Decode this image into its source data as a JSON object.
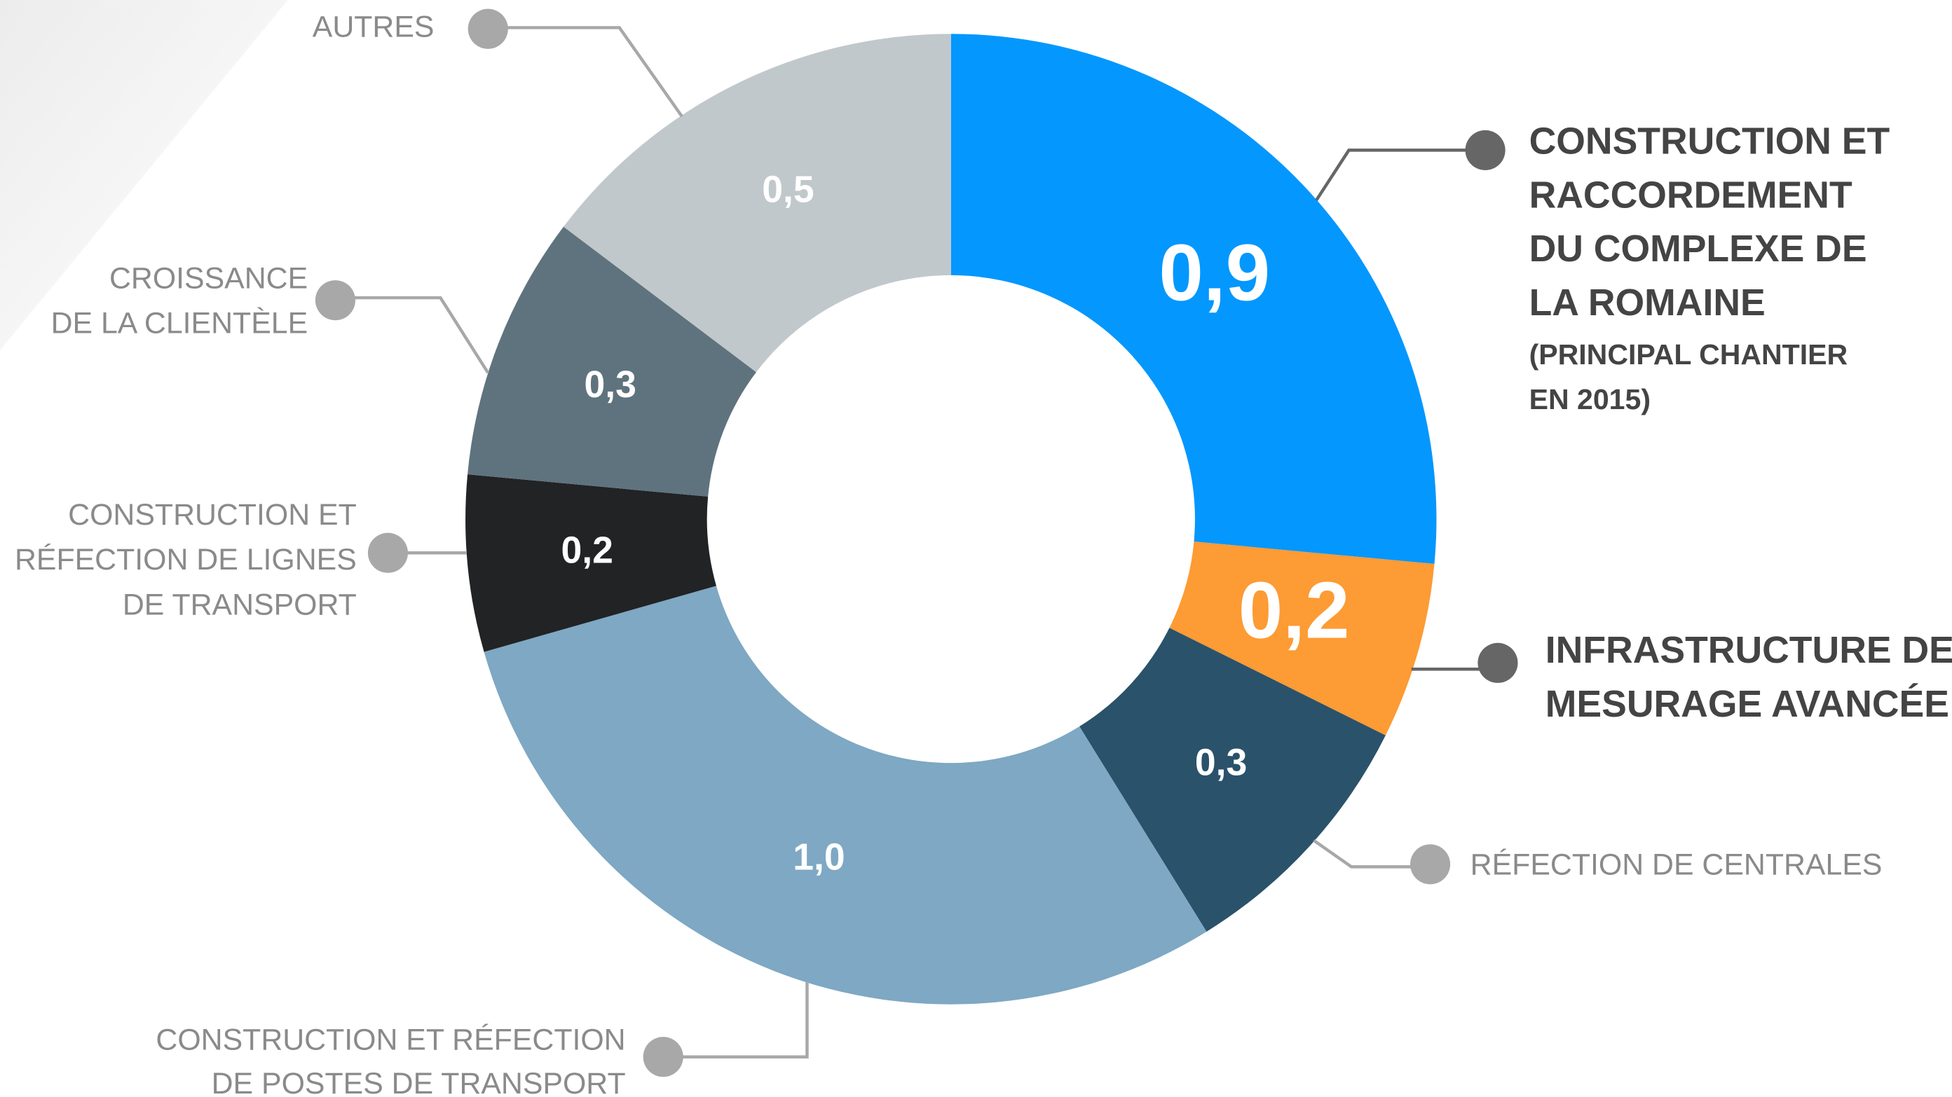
{
  "chart_data": {
    "type": "donut",
    "categories": [
      [
        "CONSTRUCTION ET",
        "RACCORDEMENT",
        "DU COMPLEXE DE",
        "LA ROMAINE"
      ],
      [
        "INFRASTRUCTURE DE",
        "MESURAGE AVANCÉE"
      ],
      [
        "RÉFECTION DE CENTRALES"
      ],
      [
        "CONSTRUCTION  ET RÉFECTION",
        "DE POSTES DE TRANSPORT"
      ],
      [
        "CONSTRUCTION ET",
        "RÉFECTION DE LIGNES",
        "DE TRANSPORT"
      ],
      [
        "CROISSANCE",
        "DE LA CLIENTÈLE"
      ],
      [
        "AUTRES"
      ]
    ],
    "annotation": [
      "(PRINCIPAL CHANTIER",
      "EN 2015)"
    ],
    "values": [
      0.9,
      0.2,
      0.3,
      1.0,
      0.2,
      0.3,
      0.5
    ],
    "value_labels": [
      "0,9",
      "0,2",
      "0,3",
      "1,0",
      "0,2",
      "0,3",
      "0,5"
    ],
    "colors": [
      "#0497fd",
      "#fd9b34",
      "#2a526b",
      "#7ea8c3",
      "#212325",
      "#5f737e",
      "#c0c8cc"
    ]
  }
}
